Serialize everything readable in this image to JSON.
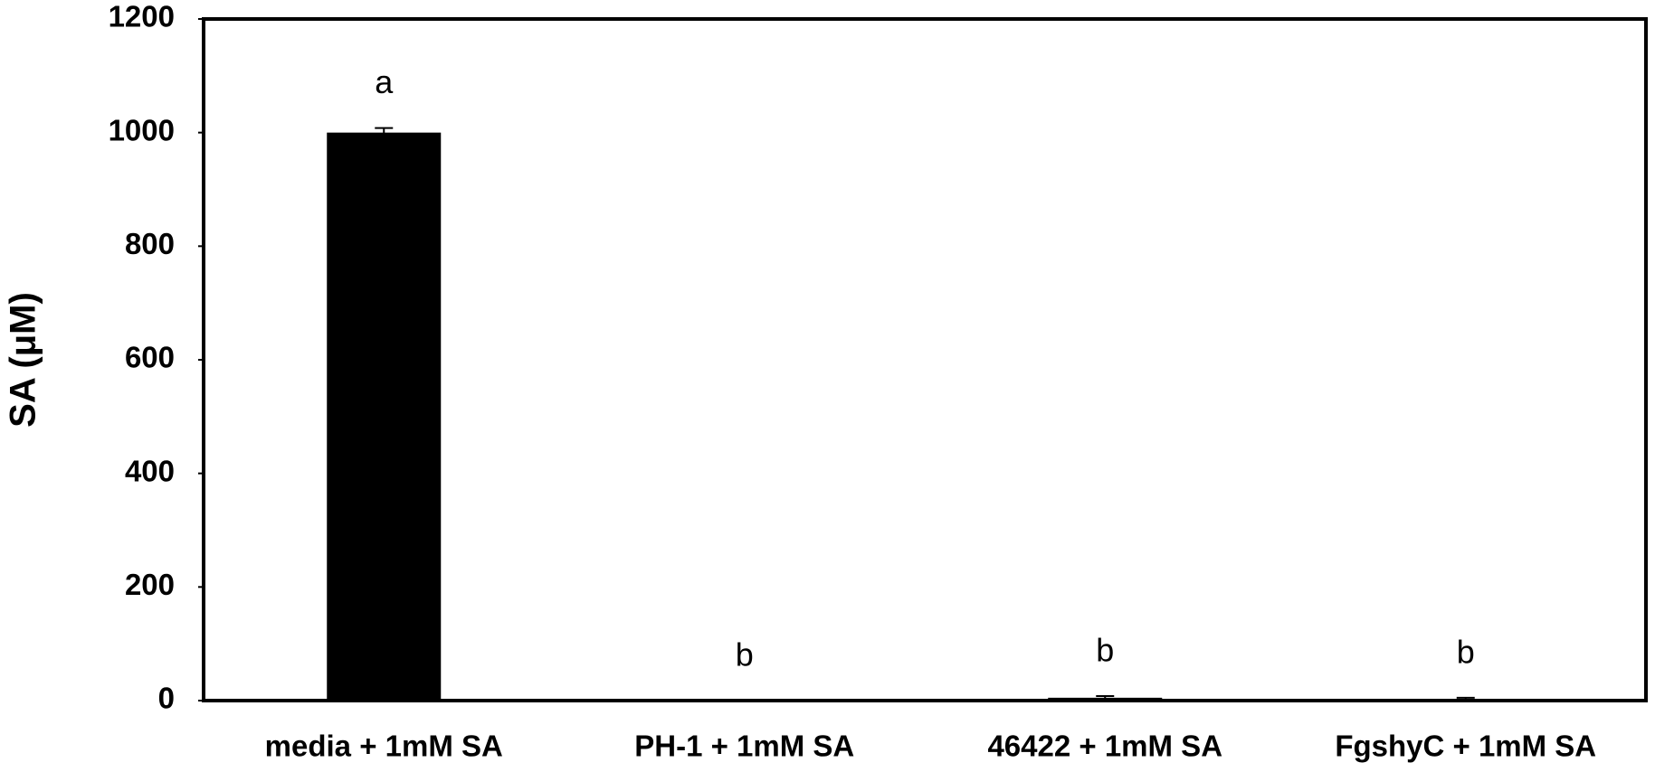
{
  "chart_data": {
    "type": "bar",
    "y_label": "SA (μM)",
    "categories": [
      "media + 1mM SA",
      "PH-1 + 1mM SA",
      "46422 + 1mM SA",
      "FgshyC + 1mM SA"
    ],
    "values": [
      1000,
      0,
      5,
      3
    ],
    "errors": [
      8,
      0,
      3,
      2
    ],
    "annotations": [
      "a",
      "b",
      "b",
      "b"
    ],
    "color": "#000000",
    "ylim": [
      0,
      1200
    ],
    "yticks": [
      0,
      200,
      400,
      600,
      800,
      1000,
      1200
    ]
  }
}
